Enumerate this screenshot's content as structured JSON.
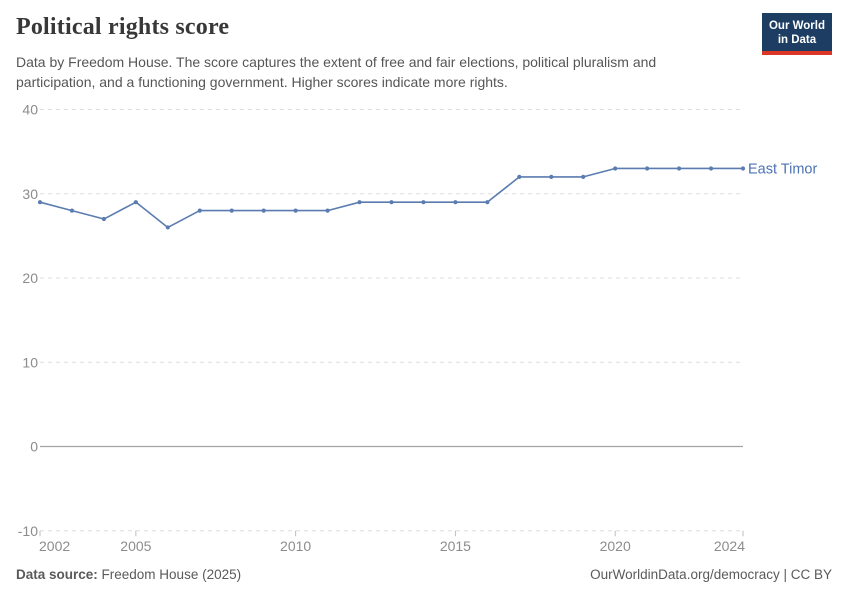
{
  "header": {
    "title": "Political rights score",
    "subtitle": "Data by Freedom House. The score captures the extent of free and fair elections, political pluralism and participation, and a functioning government. Higher scores indicate more rights.",
    "logo": {
      "line1": "Our World",
      "line2": "in Data",
      "bg_color": "#1d3d63",
      "accent_color": "#dc3627"
    }
  },
  "chart_data": {
    "type": "line",
    "title": "Political rights score",
    "x": [
      2002,
      2003,
      2004,
      2005,
      2006,
      2007,
      2008,
      2009,
      2010,
      2011,
      2012,
      2013,
      2014,
      2015,
      2016,
      2017,
      2018,
      2019,
      2020,
      2021,
      2022,
      2023,
      2024
    ],
    "series": [
      {
        "name": "East Timor",
        "color": "#5b7cb0",
        "values": [
          29,
          28,
          27,
          29,
          26,
          28,
          28,
          28,
          28,
          28,
          29,
          29,
          29,
          29,
          29,
          32,
          32,
          32,
          33,
          33,
          33,
          33,
          33
        ]
      }
    ],
    "label_color": "#4d72b4",
    "x_ticks": [
      2002,
      2005,
      2010,
      2015,
      2020,
      2024
    ],
    "y_ticks": [
      40,
      30,
      20,
      10,
      0,
      -10
    ],
    "xlim": [
      2002,
      2024
    ],
    "ylim": [
      -10,
      40
    ],
    "grid": "horizontal dashed, solid zero line",
    "legend_position": "right end-of-line label",
    "axis_text_color": "#8c8c8c"
  },
  "footer": {
    "source_label": "Data source:",
    "source_value": " Freedom House (2025)",
    "link": "OurWorldinData.org/democracy | CC BY"
  }
}
